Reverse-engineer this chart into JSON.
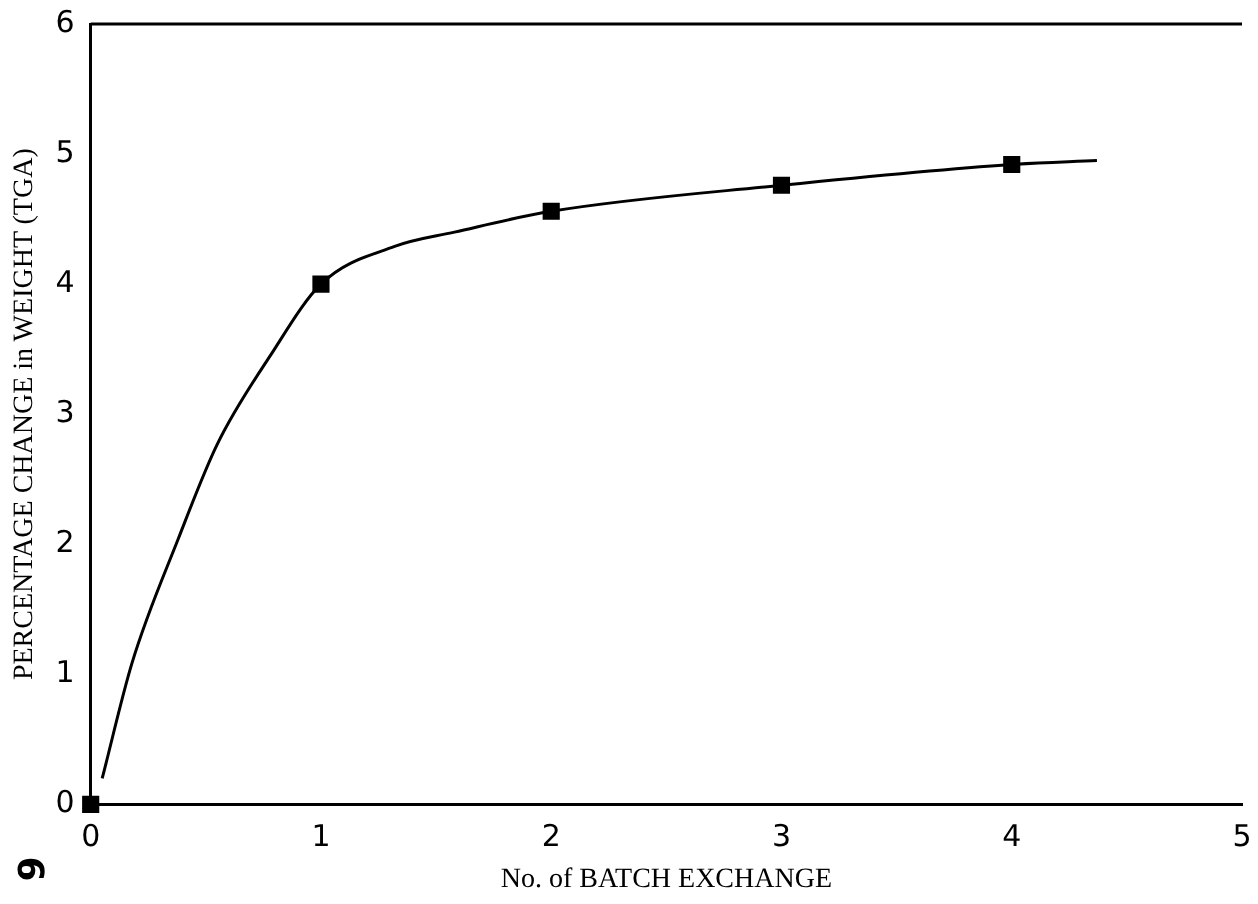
{
  "chart_data": {
    "type": "scatter",
    "xlabel": "No. of BATCH EXCHANGE",
    "ylabel": "PERCENTAGE CHANGE in WEIGHT (TGA)",
    "xlim": [
      0,
      5
    ],
    "xticks": [
      0,
      1,
      2,
      3,
      4,
      5
    ],
    "ylim": [
      0,
      6
    ],
    "yticks": [
      0,
      1,
      2,
      3,
      4,
      5,
      6
    ],
    "grid": false,
    "legend": false,
    "marker": "square",
    "series": [
      {
        "type": "scatter",
        "color": "#000000",
        "x": [
          0,
          1,
          2,
          3,
          4
        ],
        "values": [
          0,
          4.0,
          4.56,
          4.76,
          4.92
        ]
      },
      {
        "type": "line",
        "color": "#000000",
        "marker": "none",
        "line_style": "solid",
        "x": [
          0.05,
          0.18,
          0.38,
          0.55,
          0.78,
          1,
          1.32,
          1.58,
          2,
          3,
          4,
          4.37
        ],
        "values": [
          0.2,
          1.09,
          2.04,
          2.77,
          3.45,
          4.0,
          4.29,
          4.4,
          4.56,
          4.76,
          4.92,
          4.95
        ]
      }
    ],
    "annotations": [
      "6"
    ]
  }
}
